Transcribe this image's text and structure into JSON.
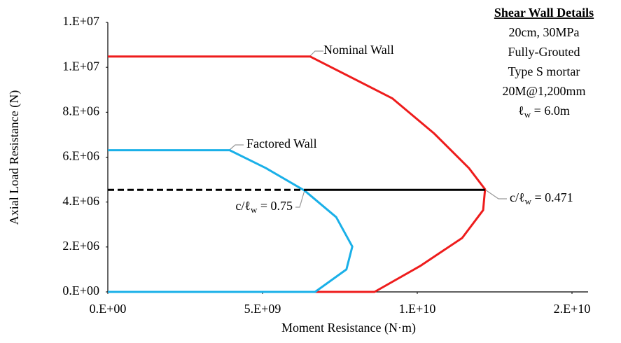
{
  "chart_data": {
    "type": "line",
    "x_label": "Moment Resistance (N·m)",
    "y_label": "Axial Load Resistance (N)",
    "xlim": [
      0,
      15000000000
    ],
    "ylim": [
      0,
      12000000
    ],
    "xticks": [
      {
        "value": 0,
        "label": "0.E+00"
      },
      {
        "value": 5000000000,
        "label": "5.E+09"
      },
      {
        "value": 10000000000,
        "label": "1.E+10"
      },
      {
        "value": 15000000000,
        "label": "2.E+10"
      }
    ],
    "yticks": [
      {
        "value": 0,
        "label": "0.E+00"
      },
      {
        "value": 2000000,
        "label": "2.E+06"
      },
      {
        "value": 4000000,
        "label": "4.E+06"
      },
      {
        "value": 6000000,
        "label": "6.E+06"
      },
      {
        "value": 8000000,
        "label": "8.E+06"
      },
      {
        "value": 10000000,
        "label": "1.E+07"
      },
      {
        "value": 12000000,
        "label": "1.E+07"
      }
    ],
    "series": [
      {
        "name": "Nominal Wall",
        "color": "#ee1c1c",
        "dash": false,
        "x": [
          0,
          6540000000,
          9190000000,
          10540000000,
          11670000000,
          12190000000,
          12130000000,
          11450000000,
          10090000000,
          8620000000,
          0
        ],
        "values": [
          10480000,
          10480000,
          8620000,
          7060000,
          5510000,
          4570000,
          3640000,
          2400000,
          1150000,
          0,
          0
        ]
      },
      {
        "name": "Factored Wall",
        "color": "#1ab0e8",
        "dash": false,
        "x": [
          0,
          3940000000,
          5110000000,
          6360000000,
          7380000000,
          7900000000,
          7710000000,
          6700000000,
          0
        ],
        "values": [
          6310000,
          6310000,
          5510000,
          4510000,
          3330000,
          2020000,
          1000000,
          0,
          0
        ]
      },
      {
        "color": "#000000",
        "dash": true,
        "x": [
          0,
          6360000000
        ],
        "values": [
          4540000,
          4540000
        ]
      },
      {
        "color": "#000000",
        "dash": false,
        "x": [
          6360000000,
          12190000000
        ],
        "values": [
          4540000,
          4540000
        ]
      }
    ],
    "annotations": [
      {
        "text": "c/ℓ",
        "sub": "w",
        "rest": " = 0.75"
      },
      {
        "text": "c/ℓ",
        "sub": "w",
        "rest": " = 0.471"
      }
    ],
    "details": {
      "title": "Shear Wall Details",
      "lines": [
        "20cm, 30MPa",
        "Fully-Grouted",
        "Type S mortar",
        "20M@1,200mm"
      ],
      "length": {
        "text": "ℓ",
        "sub": "w",
        "rest": " = 6.0m"
      }
    }
  }
}
